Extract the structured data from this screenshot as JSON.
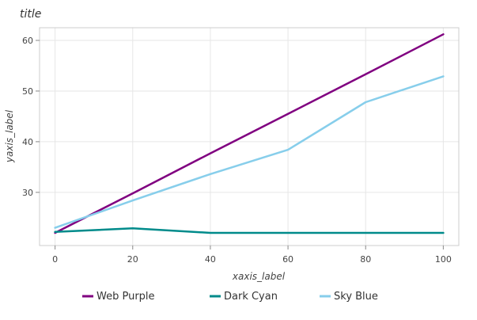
{
  "chart_data": {
    "type": "line",
    "title": "title",
    "xlabel": "xaxis_label",
    "ylabel": "yaxis_label",
    "xlim": [
      -4,
      104
    ],
    "ylim": [
      19.5,
      62.5
    ],
    "xticks": [
      0,
      20,
      40,
      60,
      80,
      100
    ],
    "yticks": [
      30,
      40,
      50,
      60
    ],
    "grid": true,
    "legend_position": "bottom",
    "series": [
      {
        "name": "Web Purple",
        "color": "#800080",
        "x": [
          0,
          20,
          40,
          60,
          80,
          100
        ],
        "y": [
          22.0,
          29.8,
          37.7,
          45.5,
          53.3,
          61.2
        ]
      },
      {
        "name": "Dark Cyan",
        "color": "#008b8b",
        "x": [
          0,
          20,
          40,
          60,
          80,
          100
        ],
        "y": [
          22.2,
          22.9,
          22.0,
          22.0,
          22.0,
          22.0
        ]
      },
      {
        "name": "Sky Blue",
        "color": "#87ceeb",
        "x": [
          0,
          20,
          40,
          60,
          80,
          100
        ],
        "y": [
          23.0,
          28.4,
          33.6,
          38.4,
          47.8,
          52.9
        ]
      }
    ]
  }
}
